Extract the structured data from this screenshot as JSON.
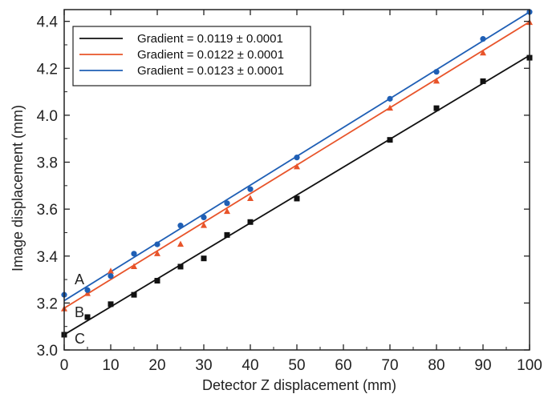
{
  "chart_data": {
    "type": "scatter",
    "title": "",
    "xlabel": "Detector Z displacement (mm)",
    "ylabel": "Image displacement (mm)",
    "xlim": [
      0,
      100
    ],
    "ylim": [
      3.0,
      4.45
    ],
    "x_ticks": [
      0,
      10,
      20,
      30,
      40,
      50,
      60,
      70,
      80,
      90,
      100
    ],
    "y_ticks": [
      3.0,
      3.2,
      3.4,
      3.6,
      3.8,
      4.0,
      4.2,
      4.4
    ],
    "y_tick_labels": [
      "3.0",
      "3.2",
      "3.4",
      "3.6",
      "3.8",
      "4.0",
      "4.2",
      "4.4"
    ],
    "grid": false,
    "legend_position": "top-left",
    "series": [
      {
        "name": "Gradient = 0.0119 ± 0.0001",
        "curve_label": "C",
        "color": "#111111",
        "marker": "square",
        "fit": {
          "intercept": 3.065,
          "slope": 0.0119
        },
        "points": [
          [
            0,
            3.065
          ],
          [
            5,
            3.14
          ],
          [
            10,
            3.195
          ],
          [
            15,
            3.235
          ],
          [
            20,
            3.295
          ],
          [
            25,
            3.355
          ],
          [
            30,
            3.39
          ],
          [
            35,
            3.49
          ],
          [
            40,
            3.545
          ],
          [
            50,
            3.645
          ],
          [
            70,
            3.895
          ],
          [
            80,
            4.03
          ],
          [
            90,
            4.145
          ],
          [
            100,
            4.245
          ]
        ]
      },
      {
        "name": "Gradient = 0.0122 ± 0.0001",
        "curve_label": "B",
        "color": "#e8542a",
        "marker": "triangle",
        "fit": {
          "intercept": 3.178,
          "slope": 0.0122
        },
        "points": [
          [
            0,
            3.175
          ],
          [
            5,
            3.24
          ],
          [
            10,
            3.335
          ],
          [
            15,
            3.355
          ],
          [
            20,
            3.41
          ],
          [
            25,
            3.45
          ],
          [
            30,
            3.53
          ],
          [
            35,
            3.59
          ],
          [
            40,
            3.645
          ],
          [
            50,
            3.78
          ],
          [
            70,
            4.03
          ],
          [
            80,
            4.145
          ],
          [
            90,
            4.265
          ],
          [
            100,
            4.395
          ]
        ]
      },
      {
        "name": "Gradient = 0.0123 ± 0.0001",
        "curve_label": "A",
        "color": "#1f5fb5",
        "marker": "circle",
        "fit": {
          "intercept": 3.21,
          "slope": 0.0123
        },
        "points": [
          [
            0,
            3.235
          ],
          [
            5,
            3.255
          ],
          [
            10,
            3.315
          ],
          [
            15,
            3.41
          ],
          [
            20,
            3.45
          ],
          [
            25,
            3.53
          ],
          [
            30,
            3.565
          ],
          [
            35,
            3.625
          ],
          [
            40,
            3.685
          ],
          [
            50,
            3.82
          ],
          [
            70,
            4.07
          ],
          [
            80,
            4.185
          ],
          [
            90,
            4.325
          ],
          [
            100,
            4.44
          ]
        ]
      }
    ]
  }
}
